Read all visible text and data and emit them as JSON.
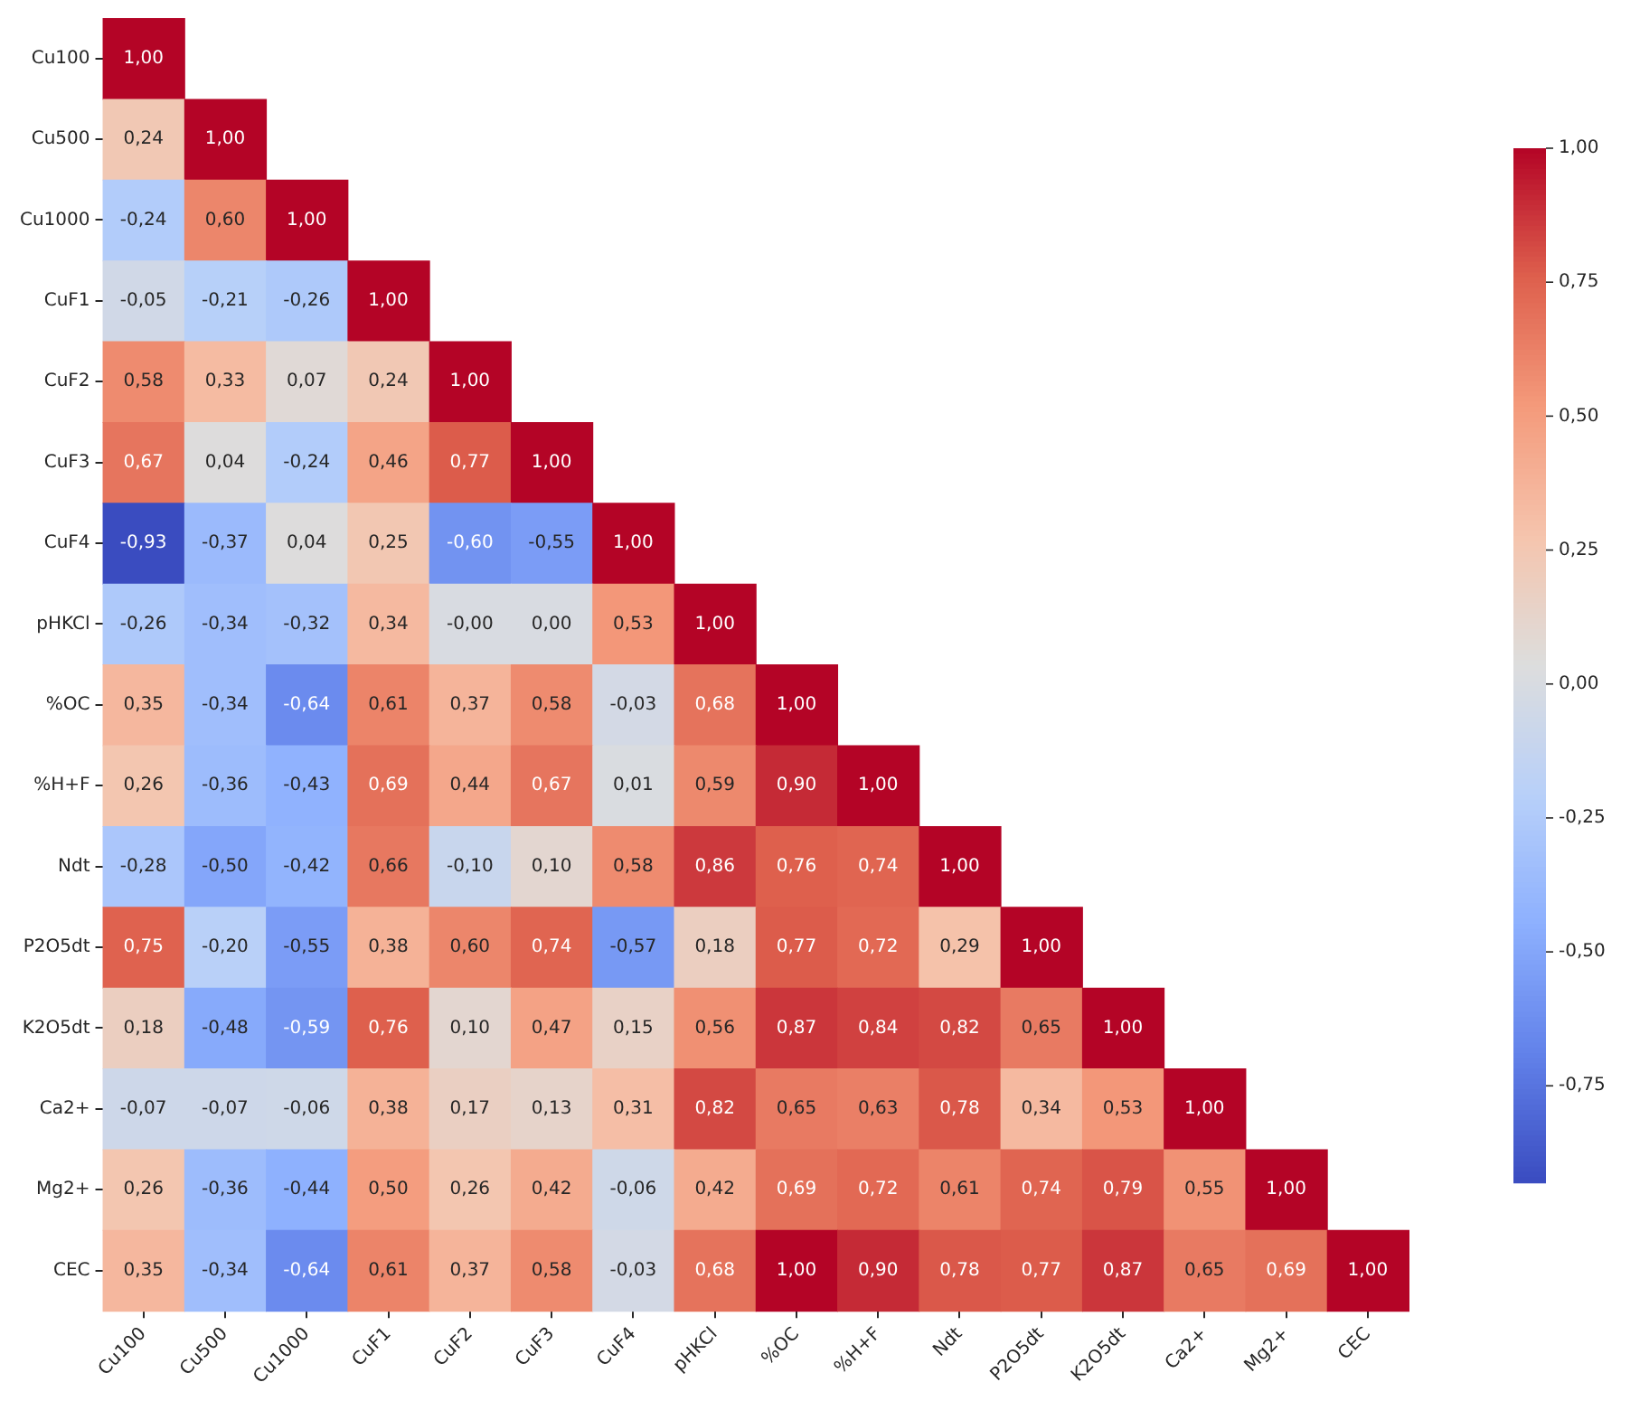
{
  "chart_data": {
    "type": "heatmap",
    "categories": [
      "Cu100",
      "Cu500",
      "Cu1000",
      "CuF1",
      "CuF2",
      "CuF3",
      "CuF4",
      "pHKCl",
      "%OC",
      "%H+F",
      "Ndt",
      "P2O5dt",
      "K2O5dt",
      "Ca2+",
      "Mg2+",
      "CEC"
    ],
    "y_categories": [
      "Cu100",
      "Cu500",
      "Cu1000",
      "CuF1",
      "CuF2",
      "CuF3",
      "CuF4",
      "pHKCl",
      "%OC",
      "%H+F",
      "Ndt",
      "P2O5dt",
      "K2O5dt",
      "Ca2+",
      "Mg2+",
      "CEC"
    ],
    "cells": [
      [
        1.0,
        null,
        null,
        null,
        null,
        null,
        null,
        null,
        null,
        null,
        null,
        null,
        null,
        null,
        null,
        null
      ],
      [
        0.24,
        1.0,
        null,
        null,
        null,
        null,
        null,
        null,
        null,
        null,
        null,
        null,
        null,
        null,
        null,
        null
      ],
      [
        -0.24,
        0.6,
        1.0,
        null,
        null,
        null,
        null,
        null,
        null,
        null,
        null,
        null,
        null,
        null,
        null,
        null
      ],
      [
        -0.05,
        -0.21,
        -0.26,
        1.0,
        null,
        null,
        null,
        null,
        null,
        null,
        null,
        null,
        null,
        null,
        null,
        null
      ],
      [
        0.58,
        0.33,
        0.07,
        0.24,
        1.0,
        null,
        null,
        null,
        null,
        null,
        null,
        null,
        null,
        null,
        null,
        null
      ],
      [
        0.67,
        0.04,
        -0.24,
        0.46,
        0.77,
        1.0,
        null,
        null,
        null,
        null,
        null,
        null,
        null,
        null,
        null,
        null
      ],
      [
        -0.93,
        -0.37,
        0.04,
        0.25,
        -0.6,
        -0.55,
        1.0,
        null,
        null,
        null,
        null,
        null,
        null,
        null,
        null,
        null
      ],
      [
        -0.26,
        -0.34,
        -0.32,
        0.34,
        -0.0,
        0.0,
        0.53,
        1.0,
        null,
        null,
        null,
        null,
        null,
        null,
        null,
        null
      ],
      [
        0.35,
        -0.34,
        -0.64,
        0.61,
        0.37,
        0.58,
        -0.03,
        0.68,
        1.0,
        null,
        null,
        null,
        null,
        null,
        null,
        null
      ],
      [
        0.26,
        -0.36,
        -0.43,
        0.69,
        0.44,
        0.67,
        0.01,
        0.59,
        0.9,
        1.0,
        null,
        null,
        null,
        null,
        null,
        null
      ],
      [
        -0.28,
        -0.5,
        -0.42,
        0.66,
        -0.1,
        0.1,
        0.58,
        0.86,
        0.76,
        0.74,
        1.0,
        null,
        null,
        null,
        null,
        null
      ],
      [
        0.75,
        -0.2,
        -0.55,
        0.38,
        0.6,
        0.74,
        -0.57,
        0.18,
        0.77,
        0.72,
        0.29,
        1.0,
        null,
        null,
        null,
        null
      ],
      [
        0.18,
        -0.48,
        -0.59,
        0.76,
        0.1,
        0.47,
        0.15,
        0.56,
        0.87,
        0.84,
        0.82,
        0.65,
        1.0,
        null,
        null,
        null
      ],
      [
        -0.07,
        -0.07,
        -0.06,
        0.38,
        0.17,
        0.13,
        0.31,
        0.82,
        0.65,
        0.63,
        0.78,
        0.34,
        0.53,
        1.0,
        null,
        null
      ],
      [
        0.26,
        -0.36,
        -0.44,
        0.5,
        0.26,
        0.42,
        -0.06,
        0.42,
        0.69,
        0.72,
        0.61,
        0.74,
        0.79,
        0.55,
        1.0,
        null
      ],
      [
        0.35,
        -0.34,
        -0.64,
        0.61,
        0.37,
        0.58,
        -0.03,
        0.68,
        1.0,
        0.9,
        0.78,
        0.77,
        0.87,
        0.65,
        0.69,
        1.0
      ]
    ],
    "cell_labels": [
      [
        "1,00",
        null,
        null,
        null,
        null,
        null,
        null,
        null,
        null,
        null,
        null,
        null,
        null,
        null,
        null,
        null
      ],
      [
        "0,24",
        "1,00",
        null,
        null,
        null,
        null,
        null,
        null,
        null,
        null,
        null,
        null,
        null,
        null,
        null,
        null
      ],
      [
        "-0,24",
        "0,60",
        "1,00",
        null,
        null,
        null,
        null,
        null,
        null,
        null,
        null,
        null,
        null,
        null,
        null,
        null
      ],
      [
        "-0,05",
        "-0,21",
        "-0,26",
        "1,00",
        null,
        null,
        null,
        null,
        null,
        null,
        null,
        null,
        null,
        null,
        null,
        null
      ],
      [
        "0,58",
        "0,33",
        "0,07",
        "0,24",
        "1,00",
        null,
        null,
        null,
        null,
        null,
        null,
        null,
        null,
        null,
        null,
        null
      ],
      [
        "0,67",
        "0,04",
        "-0,24",
        "0,46",
        "0,77",
        "1,00",
        null,
        null,
        null,
        null,
        null,
        null,
        null,
        null,
        null,
        null
      ],
      [
        "-0,93",
        "-0,37",
        "0,04",
        "0,25",
        "-0,60",
        "-0,55",
        "1,00",
        null,
        null,
        null,
        null,
        null,
        null,
        null,
        null,
        null
      ],
      [
        "-0,26",
        "-0,34",
        "-0,32",
        "0,34",
        "-0,00",
        "0,00",
        "0,53",
        "1,00",
        null,
        null,
        null,
        null,
        null,
        null,
        null,
        null
      ],
      [
        "0,35",
        "-0,34",
        "-0,64",
        "0,61",
        "0,37",
        "0,58",
        "-0,03",
        "0,68",
        "1,00",
        null,
        null,
        null,
        null,
        null,
        null,
        null
      ],
      [
        "0,26",
        "-0,36",
        "-0,43",
        "0,69",
        "0,44",
        "0,67",
        "0,01",
        "0,59",
        "0,90",
        "1,00",
        null,
        null,
        null,
        null,
        null,
        null
      ],
      [
        "-0,28",
        "-0,50",
        "-0,42",
        "0,66",
        "-0,10",
        "0,10",
        "0,58",
        "0,86",
        "0,76",
        "0,74",
        "1,00",
        null,
        null,
        null,
        null,
        null
      ],
      [
        "0,75",
        "-0,20",
        "-0,55",
        "0,38",
        "0,60",
        "0,74",
        "-0,57",
        "0,18",
        "0,77",
        "0,72",
        "0,29",
        "1,00",
        null,
        null,
        null,
        null
      ],
      [
        "0,18",
        "-0,48",
        "-0,59",
        "0,76",
        "0,10",
        "0,47",
        "0,15",
        "0,56",
        "0,87",
        "0,84",
        "0,82",
        "0,65",
        "1,00",
        null,
        null,
        null
      ],
      [
        "-0,07",
        "-0,07",
        "-0,06",
        "0,38",
        "0,17",
        "0,13",
        "0,31",
        "0,82",
        "0,65",
        "0,63",
        "0,78",
        "0,34",
        "0,53",
        "1,00",
        null,
        null
      ],
      [
        "0,26",
        "-0,36",
        "-0,44",
        "0,50",
        "0,26",
        "0,42",
        "-0,06",
        "0,42",
        "0,69",
        "0,72",
        "0,61",
        "0,74",
        "0,79",
        "0,55",
        "1,00",
        null
      ],
      [
        "0,35",
        "-0,34",
        "-0,64",
        "0,61",
        "0,37",
        "0,58",
        "-0,03",
        "0,68",
        "1,00",
        "0,90",
        "0,78",
        "0,77",
        "0,87",
        "0,65",
        "0,69",
        "1,00"
      ]
    ],
    "clim": [
      -0.93,
      1.0
    ],
    "cticks": [
      {
        "value": 1.0,
        "label": "1,00"
      },
      {
        "value": 0.75,
        "label": "0,75"
      },
      {
        "value": 0.5,
        "label": "0,50"
      },
      {
        "value": 0.25,
        "label": "0,25"
      },
      {
        "value": 0.0,
        "label": "0,00"
      },
      {
        "value": -0.25,
        "label": "-0,25"
      },
      {
        "value": -0.5,
        "label": "-0,50"
      },
      {
        "value": -0.75,
        "label": "-0,75"
      }
    ]
  }
}
